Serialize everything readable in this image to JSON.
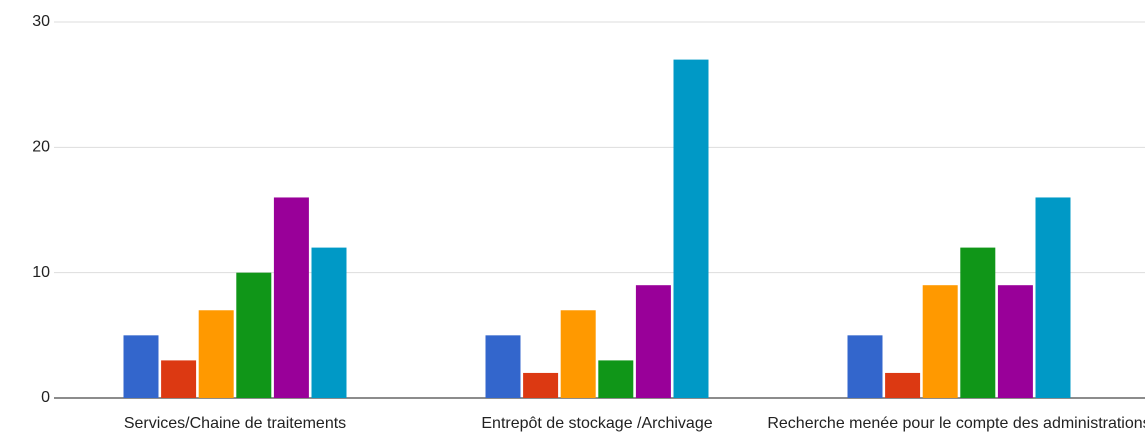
{
  "chart_data": {
    "type": "bar",
    "categories": [
      "Services/Chaine de traitements",
      "Entrepôt de stockage /Archivage",
      "Recherche menée pour le compte des administrations"
    ],
    "series": [
      {
        "color": "#3366cc",
        "values": [
          5,
          5,
          5
        ]
      },
      {
        "color": "#dc3912",
        "values": [
          3,
          2,
          2
        ]
      },
      {
        "color": "#ff9900",
        "values": [
          7,
          7,
          9
        ]
      },
      {
        "color": "#109618",
        "values": [
          10,
          3,
          12
        ]
      },
      {
        "color": "#990099",
        "values": [
          16,
          9,
          9
        ]
      },
      {
        "color": "#0099c6",
        "values": [
          12,
          27,
          16
        ]
      }
    ],
    "ylim": [
      0,
      30
    ],
    "yticks": [
      0,
      10,
      20,
      30
    ],
    "grid": true
  }
}
